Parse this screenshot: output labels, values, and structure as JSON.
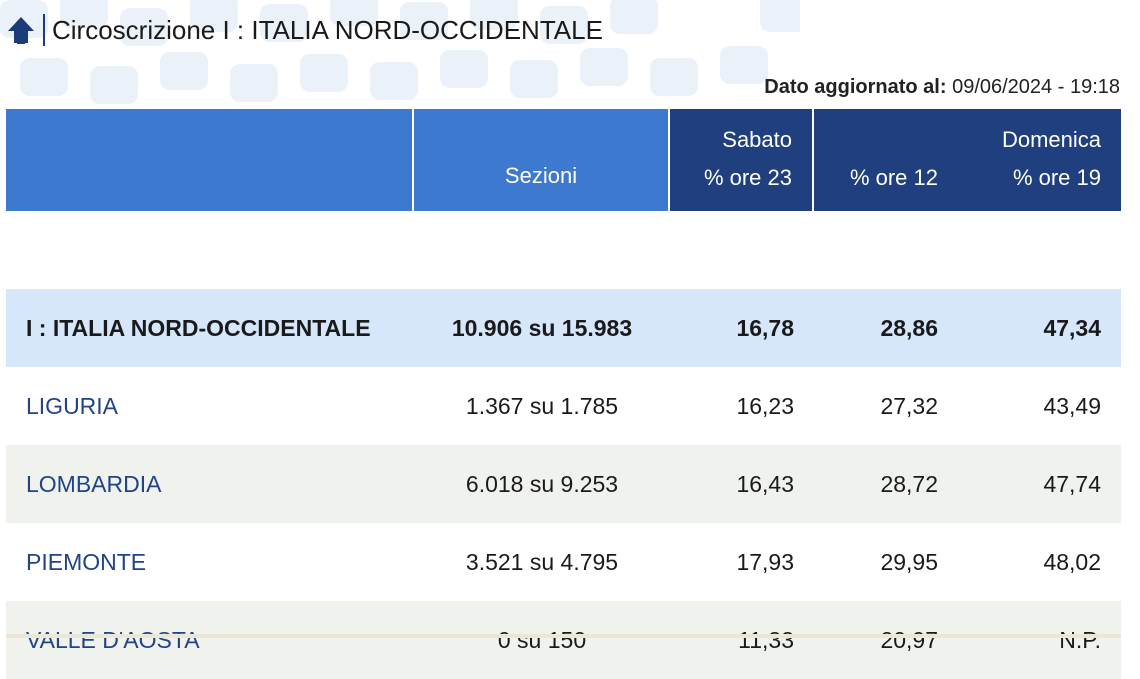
{
  "header": {
    "title": "Circoscrizione I : ITALIA NORD-OCCIDENTALE",
    "back_icon": "arrow-up-icon"
  },
  "updated": {
    "label": "Dato aggiornato al:",
    "value": "09/06/2024 - 19:18"
  },
  "table": {
    "columns": {
      "sezioni": "Sezioni",
      "sabato_day": "Sabato",
      "sabato_hour": "% ore 23",
      "domenica_hour12": "% ore 12",
      "domenica_day": "Domenica",
      "domenica_hour19": "% ore 19"
    },
    "total": {
      "name": "I : ITALIA NORD-OCCIDENTALE",
      "sezioni": "10.906 su 15.983",
      "sab23": "16,78",
      "dom12": "28,86",
      "dom19": "47,34"
    },
    "rows": [
      {
        "name": "LIGURIA",
        "sezioni": "1.367 su 1.785",
        "sab23": "16,23",
        "dom12": "27,32",
        "dom19": "43,49"
      },
      {
        "name": "LOMBARDIA",
        "sezioni": "6.018 su 9.253",
        "sab23": "16,43",
        "dom12": "28,72",
        "dom19": "47,74"
      },
      {
        "name": "PIEMONTE",
        "sezioni": "3.521 su 4.795",
        "sab23": "17,93",
        "dom12": "29,95",
        "dom19": "48,02"
      },
      {
        "name": "VALLE D'AOSTA",
        "sezioni": "0 su 150",
        "sab23": "11,33",
        "dom12": "20,97",
        "dom19": "N.P."
      }
    ]
  },
  "colors": {
    "header_light": "#3e79d0",
    "header_dark": "#1f3f7e",
    "total_row": "#d6e6fb",
    "alt_row": "#f0f2ee",
    "link_text": "#22438a"
  }
}
